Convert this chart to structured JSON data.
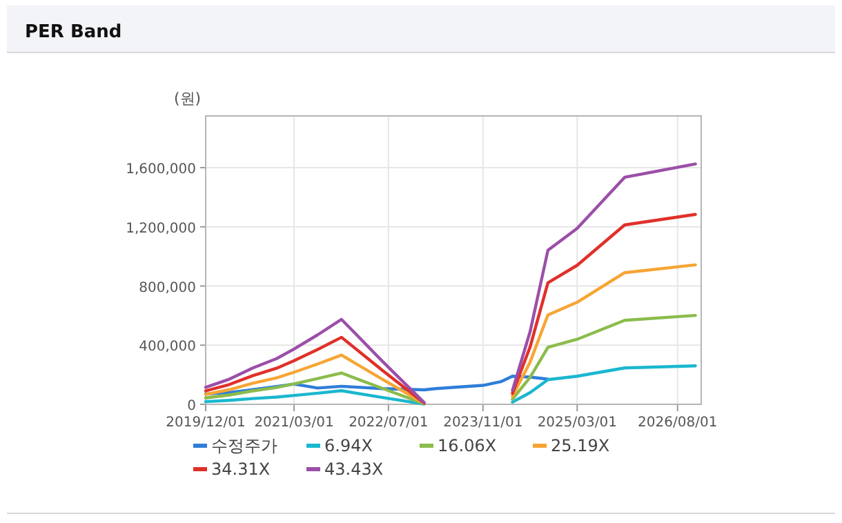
{
  "chart_data": {
    "type": "line",
    "title": "PER Band",
    "ylabel": "(원)",
    "x": [
      "2019-12",
      "2020-04",
      "2020-08",
      "2020-12",
      "2021-03",
      "2021-07",
      "2021-11",
      "2022-06",
      "2023-01",
      "2023-03",
      "2023-08",
      "2023-11",
      "2024-02",
      "2024-04",
      "2024-07",
      "2024-10",
      "2025-03",
      "2025-11",
      "2026-11"
    ],
    "xlim": [
      "2019-12-01",
      "2026-12-01"
    ],
    "xticks": [
      {
        "value": "2019-12-01",
        "label": "2019/12/01"
      },
      {
        "value": "2021-03-01",
        "label": "2021/03/01"
      },
      {
        "value": "2022-07-01",
        "label": "2022/07/01"
      },
      {
        "value": "2023-11-01",
        "label": "2023/11/01"
      },
      {
        "value": "2025-03-01",
        "label": "2025/03/01"
      },
      {
        "value": "2026-08-01",
        "label": "2026/08/01"
      }
    ],
    "ylim": [
      0,
      1950000
    ],
    "yticks": [
      {
        "value": 0,
        "label": "0"
      },
      {
        "value": 400000,
        "label": "400,000"
      },
      {
        "value": 800000,
        "label": "800,000"
      },
      {
        "value": 1200000,
        "label": "1,200,000"
      },
      {
        "value": 1600000,
        "label": "1,600,000"
      }
    ],
    "grid": true,
    "legend": "bottom",
    "marker": "none",
    "line_style": "solid",
    "series": [
      {
        "name": "수정주가",
        "color": "#2f7ed8",
        "values": [
          70000,
          80000,
          100000,
          120000,
          137000,
          110000,
          122000,
          106000,
          98000,
          106000,
          120000,
          128000,
          153000,
          190000,
          184000,
          170000,
          null,
          null,
          null
        ]
      },
      {
        "name": "6.94X",
        "color": "#1ab7cf",
        "values": [
          18000,
          27000,
          39000,
          49000,
          60000,
          75000,
          92000,
          46000,
          2000,
          null,
          null,
          null,
          null,
          15000,
          79000,
          167000,
          190000,
          246000,
          260000
        ]
      },
      {
        "name": "16.06X",
        "color": "#8bbc4c",
        "values": [
          43000,
          63000,
          91000,
          114000,
          138000,
          174000,
          212000,
          107000,
          4000,
          null,
          null,
          null,
          null,
          35000,
          182000,
          385000,
          440000,
          568000,
          601000
        ]
      },
      {
        "name": "25.19X",
        "color": "#f7a535",
        "values": [
          67000,
          99000,
          143000,
          179000,
          217000,
          273000,
          333000,
          168000,
          7000,
          null,
          null,
          null,
          null,
          55000,
          285000,
          604000,
          690000,
          890000,
          943000
        ]
      },
      {
        "name": "34.31X",
        "color": "#e0302a",
        "values": [
          91000,
          134000,
          194000,
          244000,
          295000,
          371000,
          453000,
          229000,
          9000,
          null,
          null,
          null,
          null,
          74000,
          388000,
          822000,
          940000,
          1213000,
          1284000
        ]
      },
      {
        "name": "43.43X",
        "color": "#9b4fa8",
        "values": [
          115000,
          170000,
          246000,
          309000,
          374000,
          470000,
          574000,
          290000,
          12000,
          null,
          null,
          null,
          null,
          94000,
          491000,
          1041000,
          1190000,
          1535000,
          1625000
        ]
      }
    ]
  }
}
